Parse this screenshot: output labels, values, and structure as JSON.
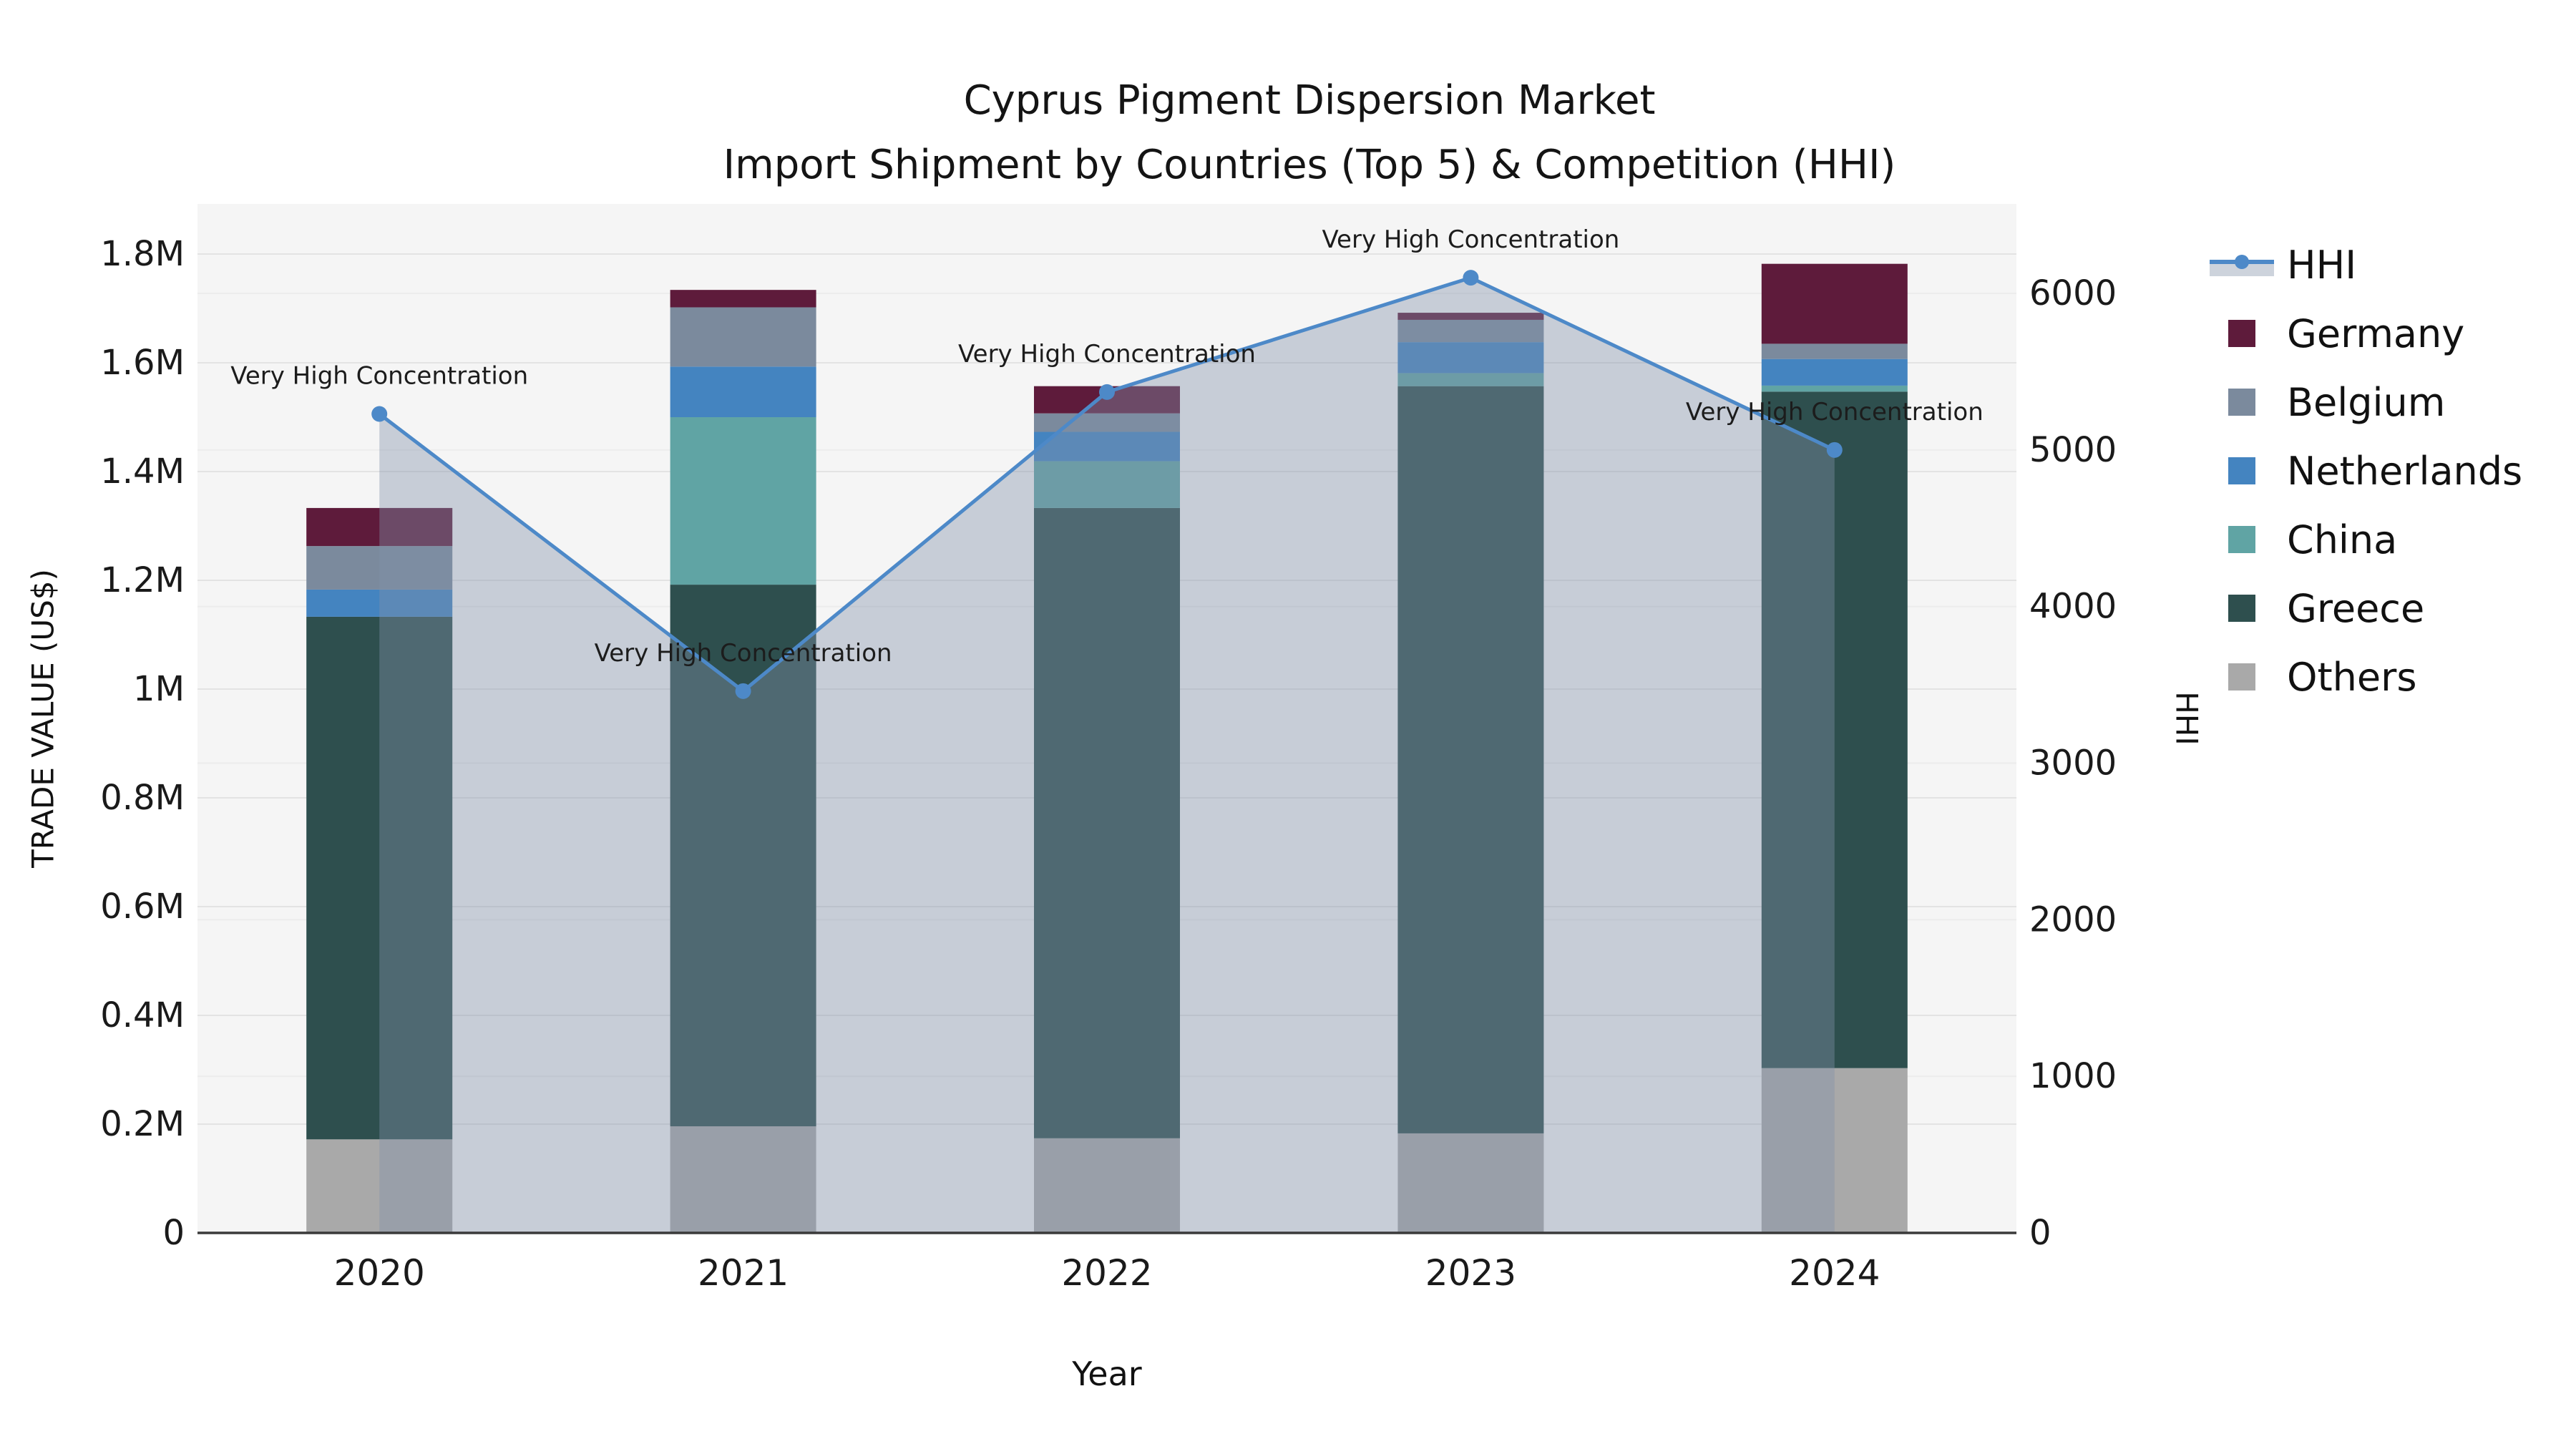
{
  "title": {
    "line1": "Cyprus Pigment Dispersion Market",
    "line2": "Import Shipment by Countries (Top 5) & Competition (HHI)"
  },
  "axes": {
    "x_title": "Year",
    "y_left_title": "TRADE VALUE (US$)",
    "y_right_title": "HHI"
  },
  "legend": {
    "items": [
      {
        "label": "HHI",
        "type": "line"
      },
      {
        "label": "Germany",
        "type": "patch"
      },
      {
        "label": "Belgium",
        "type": "patch"
      },
      {
        "label": "Netherlands",
        "type": "patch"
      },
      {
        "label": "China",
        "type": "patch"
      },
      {
        "label": "Greece",
        "type": "patch"
      },
      {
        "label": "Others",
        "type": "patch"
      }
    ]
  },
  "colors": {
    "plot_bg": "#f5f5f5",
    "grid_left": "#e3e3e3",
    "grid_right": "#ececec",
    "axis_line": "#3a3a3a",
    "hhi_line": "#4d89c8",
    "hhi_fill": "rgba(130,145,170,0.40)",
    "legend_band": "#cdd3dc",
    "text": "#1a1a1a"
  },
  "chart_data": {
    "type": "bar",
    "subtype": "stacked-bars-with-line-area-overlay",
    "categories": [
      "2020",
      "2021",
      "2022",
      "2023",
      "2024"
    ],
    "series": [
      {
        "name": "Germany",
        "color": "#5e1b3b",
        "values": [
          70000,
          32000,
          50000,
          13000,
          147000
        ]
      },
      {
        "name": "Belgium",
        "color": "#7b8a9d",
        "values": [
          80000,
          109000,
          34000,
          41000,
          28000
        ]
      },
      {
        "name": "Netherlands",
        "color": "#4484c0",
        "values": [
          50000,
          93000,
          54000,
          57000,
          49000
        ]
      },
      {
        "name": "China",
        "color": "#60a4a4",
        "values": [
          0,
          308000,
          86000,
          24000,
          11000
        ]
      },
      {
        "name": "Greece",
        "color": "#2e4f4e",
        "values": [
          961000,
          996000,
          1159000,
          1374000,
          1244000
        ]
      },
      {
        "name": "Others",
        "color": "#a9a9a9",
        "values": [
          172000,
          196000,
          174000,
          183000,
          303000
        ]
      }
    ],
    "stack_order_bottom_to_top": [
      "Others",
      "Greece",
      "China",
      "Netherlands",
      "Belgium",
      "Germany"
    ],
    "line_series": {
      "name": "HHI",
      "axis": "right",
      "values": [
        5230,
        3460,
        5370,
        6100,
        5000
      ],
      "area_fill_to_zero": true
    },
    "annotations": [
      {
        "x": "2020",
        "text": "Very High Concentration"
      },
      {
        "x": "2021",
        "text": "Very High Concentration"
      },
      {
        "x": "2022",
        "text": "Very High Concentration"
      },
      {
        "x": "2023",
        "text": "Very High Concentration"
      },
      {
        "x": "2024",
        "text": "Very High Concentration"
      }
    ],
    "title": "Cyprus Pigment Dispersion Market Import Shipment by Countries (Top 5) & Competition (HHI)",
    "xlabel": "Year",
    "ylabel_left": "TRADE VALUE (US$)",
    "ylabel_right": "HHI",
    "ylim_left": [
      0,
      1800000
    ],
    "ylim_right": [
      0,
      6000
    ],
    "y_left_ticks": [
      {
        "label": "0",
        "value": 0
      },
      {
        "label": "0.2M",
        "value": 200000
      },
      {
        "label": "0.4M",
        "value": 400000
      },
      {
        "label": "0.6M",
        "value": 600000
      },
      {
        "label": "0.8M",
        "value": 800000
      },
      {
        "label": "1M",
        "value": 1000000
      },
      {
        "label": "1.2M",
        "value": 1200000
      },
      {
        "label": "1.4M",
        "value": 1400000
      },
      {
        "label": "1.6M",
        "value": 1600000
      },
      {
        "label": "1.8M",
        "value": 1800000
      }
    ],
    "y_right_ticks": [
      {
        "label": "0",
        "value": 0
      },
      {
        "label": "1000",
        "value": 1000
      },
      {
        "label": "2000",
        "value": 2000
      },
      {
        "label": "3000",
        "value": 3000
      },
      {
        "label": "4000",
        "value": 4000
      },
      {
        "label": "5000",
        "value": 5000
      },
      {
        "label": "6000",
        "value": 6000
      }
    ],
    "grid": true,
    "legend_position": "right"
  }
}
